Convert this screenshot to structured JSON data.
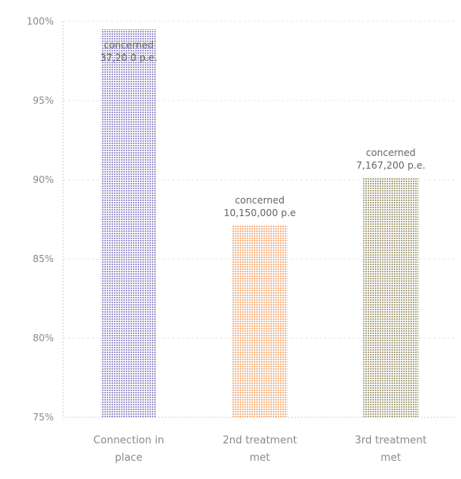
{
  "chart_data": {
    "type": "bar",
    "categories": [
      [
        "Connection in",
        "place"
      ],
      [
        "2nd treatment",
        "met"
      ],
      [
        "3rd treatment",
        "met"
      ]
    ],
    "values": [
      99.5,
      87.1,
      90.1
    ],
    "data_labels": [
      [
        "concerned",
        "37,20 0 p.e."
      ],
      [
        "concerned",
        "10,150,000 p.e"
      ],
      [
        "concerned",
        "7,167,200 p.e."
      ]
    ],
    "ylim": [
      75,
      100
    ],
    "yticks": [
      75,
      80,
      85,
      90,
      95,
      100
    ],
    "ytick_labels": [
      "75%",
      "80%",
      "85%",
      "90%",
      "95%",
      "100%"
    ],
    "grid": true,
    "colors": [
      "#a49ad0",
      "#f5b78a",
      "#b0a98a"
    ]
  }
}
